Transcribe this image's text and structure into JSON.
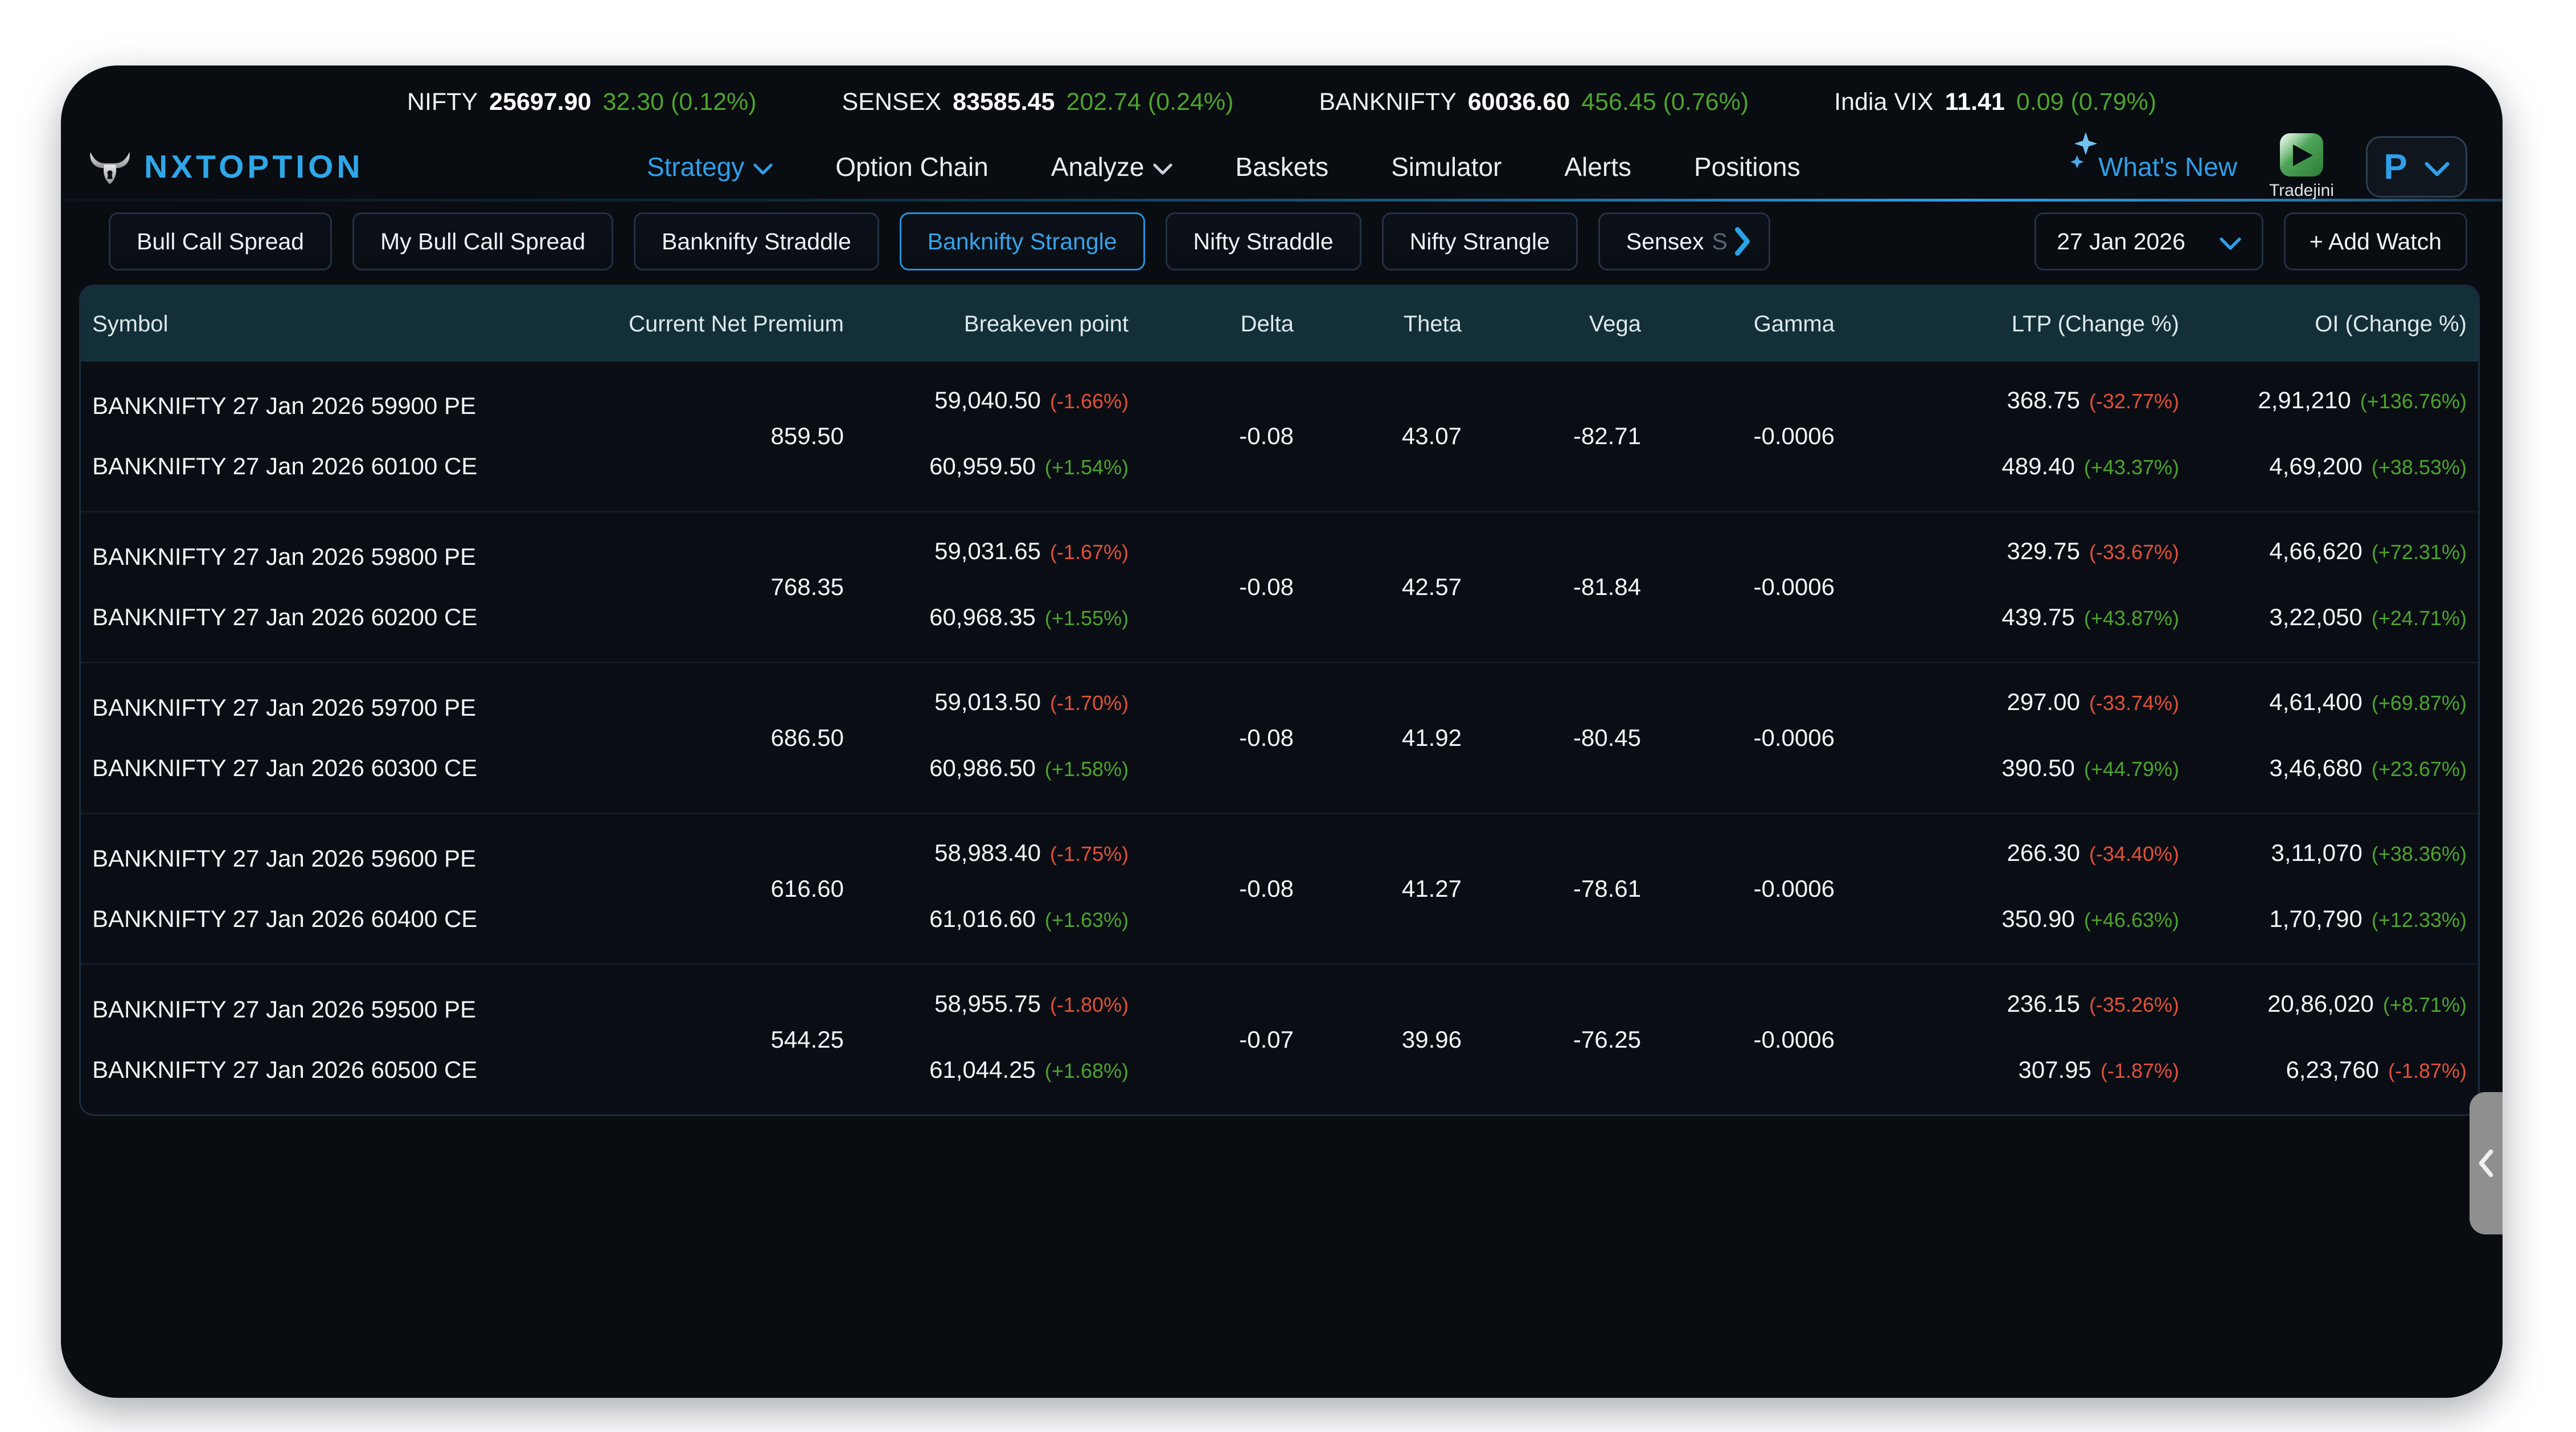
{
  "colors": {
    "accent": "#2f9fe8",
    "brand": "#2ea7e8",
    "positive": "#4ea32e",
    "negative": "#e2503a",
    "header_bg": "#133039",
    "panel_bg": "#090c11",
    "tab_selected_border": "#2293dd"
  },
  "ticker": {
    "items": [
      {
        "label": "NIFTY",
        "value": "25697.90",
        "change": "32.30 (0.12%)"
      },
      {
        "label": "SENSEX",
        "value": "83585.45",
        "change": "202.74 (0.24%)"
      },
      {
        "label": "BANKNIFTY",
        "value": "60036.60",
        "change": "456.45 (0.76%)"
      },
      {
        "label": "India VIX",
        "value": "11.41",
        "change": "0.09 (0.79%)"
      }
    ]
  },
  "nav": {
    "brand": "NXTOPTION",
    "items": [
      {
        "label": "Strategy",
        "caret": true,
        "active": true
      },
      {
        "label": "Option Chain",
        "caret": false,
        "active": false
      },
      {
        "label": "Analyze",
        "caret": true,
        "active": false
      },
      {
        "label": "Baskets",
        "caret": false,
        "active": false
      },
      {
        "label": "Simulator",
        "caret": false,
        "active": false
      },
      {
        "label": "Alerts",
        "caret": false,
        "active": false
      },
      {
        "label": "Positions",
        "caret": false,
        "active": false
      }
    ],
    "whats_new": "What's New",
    "broker_label": "Tradejini",
    "profile_label": "P"
  },
  "tabs": {
    "items": [
      {
        "label": "Bull Call Spread",
        "selected": false
      },
      {
        "label": "My Bull Call Spread",
        "selected": false
      },
      {
        "label": "Banknifty Straddle",
        "selected": false
      },
      {
        "label": "Banknifty Strangle",
        "selected": true
      },
      {
        "label": "Nifty Straddle",
        "selected": false
      },
      {
        "label": "Nifty Strangle",
        "selected": false
      },
      {
        "label": "Sensex",
        "suffix": "S",
        "selected": false,
        "truncated": true,
        "scroll_next": true
      }
    ],
    "expiry": "27 Jan 2026",
    "add_watch": "+ Add Watch"
  },
  "table": {
    "columns": [
      "Symbol",
      "Current Net Premium",
      "Breakeven point",
      "Delta",
      "Theta",
      "Vega",
      "Gamma",
      "LTP (Change %)",
      "OI (Change %)"
    ],
    "rows": [
      {
        "premium": "859.50",
        "delta": "-0.08",
        "theta": "43.07",
        "vega": "-82.71",
        "gamma": "-0.0006",
        "legs": [
          {
            "symbol": "BANKNIFTY 27 Jan 2026 59900 PE",
            "breakeven": "59,040.50",
            "breakeven_chg": "(-1.66%)",
            "ltp": "368.75",
            "ltp_chg": "(-32.77%)",
            "oi": "2,91,210",
            "oi_chg": "(+136.76%)"
          },
          {
            "symbol": "BANKNIFTY 27 Jan 2026 60100 CE",
            "breakeven": "60,959.50",
            "breakeven_chg": "(+1.54%)",
            "ltp": "489.40",
            "ltp_chg": "(+43.37%)",
            "oi": "4,69,200",
            "oi_chg": "(+38.53%)"
          }
        ]
      },
      {
        "premium": "768.35",
        "delta": "-0.08",
        "theta": "42.57",
        "vega": "-81.84",
        "gamma": "-0.0006",
        "legs": [
          {
            "symbol": "BANKNIFTY 27 Jan 2026 59800 PE",
            "breakeven": "59,031.65",
            "breakeven_chg": "(-1.67%)",
            "ltp": "329.75",
            "ltp_chg": "(-33.67%)",
            "oi": "4,66,620",
            "oi_chg": "(+72.31%)"
          },
          {
            "symbol": "BANKNIFTY 27 Jan 2026 60200 CE",
            "breakeven": "60,968.35",
            "breakeven_chg": "(+1.55%)",
            "ltp": "439.75",
            "ltp_chg": "(+43.87%)",
            "oi": "3,22,050",
            "oi_chg": "(+24.71%)"
          }
        ]
      },
      {
        "premium": "686.50",
        "delta": "-0.08",
        "theta": "41.92",
        "vega": "-80.45",
        "gamma": "-0.0006",
        "legs": [
          {
            "symbol": "BANKNIFTY 27 Jan 2026 59700 PE",
            "breakeven": "59,013.50",
            "breakeven_chg": "(-1.70%)",
            "ltp": "297.00",
            "ltp_chg": "(-33.74%)",
            "oi": "4,61,400",
            "oi_chg": "(+69.87%)"
          },
          {
            "symbol": "BANKNIFTY 27 Jan 2026 60300 CE",
            "breakeven": "60,986.50",
            "breakeven_chg": "(+1.58%)",
            "ltp": "390.50",
            "ltp_chg": "(+44.79%)",
            "oi": "3,46,680",
            "oi_chg": "(+23.67%)"
          }
        ]
      },
      {
        "premium": "616.60",
        "delta": "-0.08",
        "theta": "41.27",
        "vega": "-78.61",
        "gamma": "-0.0006",
        "legs": [
          {
            "symbol": "BANKNIFTY 27 Jan 2026 59600 PE",
            "breakeven": "58,983.40",
            "breakeven_chg": "(-1.75%)",
            "ltp": "266.30",
            "ltp_chg": "(-34.40%)",
            "oi": "3,11,070",
            "oi_chg": "(+38.36%)"
          },
          {
            "symbol": "BANKNIFTY 27 Jan 2026 60400 CE",
            "breakeven": "61,016.60",
            "breakeven_chg": "(+1.63%)",
            "ltp": "350.90",
            "ltp_chg": "(+46.63%)",
            "oi": "1,70,790",
            "oi_chg": "(+12.33%)"
          }
        ]
      },
      {
        "premium": "544.25",
        "delta": "-0.07",
        "theta": "39.96",
        "vega": "-76.25",
        "gamma": "-0.0006",
        "legs": [
          {
            "symbol": "BANKNIFTY 27 Jan 2026 59500 PE",
            "breakeven": "58,955.75",
            "breakeven_chg": "(-1.80%)",
            "ltp": "236.15",
            "ltp_chg": "(-35.26%)",
            "oi": "20,86,020",
            "oi_chg": "(+8.71%)"
          },
          {
            "symbol": "BANKNIFTY 27 Jan 2026 60500 CE",
            "breakeven": "61,044.25",
            "breakeven_chg": "(+1.68%)",
            "ltp": "307.95",
            "ltp_chg": "(-1.87%)",
            "oi": "6,23,760",
            "oi_chg": "(-1.87%)"
          }
        ]
      }
    ]
  },
  "floating": {
    "collapse": "left-chevron"
  }
}
